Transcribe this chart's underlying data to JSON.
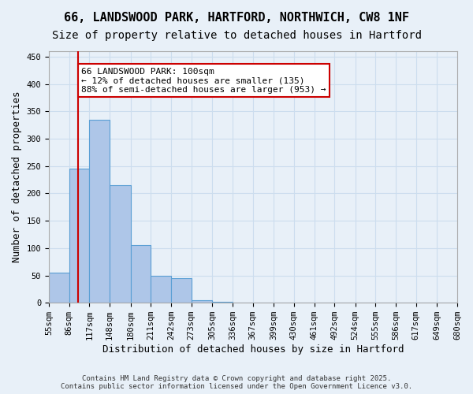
{
  "title1": "66, LANDSWOOD PARK, HARTFORD, NORTHWICH, CW8 1NF",
  "title2": "Size of property relative to detached houses in Hartford",
  "xlabel": "Distribution of detached houses by size in Hartford",
  "ylabel": "Number of detached properties",
  "bin_labels": [
    "55sqm",
    "86sqm",
    "117sqm",
    "148sqm",
    "180sqm",
    "211sqm",
    "242sqm",
    "273sqm",
    "305sqm",
    "336sqm",
    "367sqm",
    "399sqm",
    "430sqm",
    "461sqm",
    "492sqm",
    "524sqm",
    "555sqm",
    "586sqm",
    "617sqm",
    "649sqm",
    "680sqm"
  ],
  "bar_heights": [
    55,
    245,
    335,
    215,
    105,
    50,
    45,
    5,
    2,
    1,
    0,
    0,
    0,
    0,
    0,
    0,
    0,
    0,
    0,
    0
  ],
  "bar_color": "#aec6e8",
  "bar_edgecolor": "#5a9fd4",
  "ylim": [
    0,
    460
  ],
  "yticks": [
    0,
    50,
    100,
    150,
    200,
    250,
    300,
    350,
    400,
    450
  ],
  "property_size": 100,
  "bin_edges": [
    55,
    86,
    117,
    148,
    180,
    211,
    242,
    273,
    305,
    336,
    367,
    399,
    430,
    461,
    492,
    524,
    555,
    586,
    617,
    649,
    680
  ],
  "vline_color": "#cc0000",
  "annotation_text": "66 LANDSWOOD PARK: 100sqm\n← 12% of detached houses are smaller (135)\n88% of semi-detached houses are larger (953) →",
  "annotation_box_edgecolor": "#cc0000",
  "annotation_box_facecolor": "#ffffff",
  "grid_color": "#ccddee",
  "background_color": "#e8f0f8",
  "footer_text": "Contains HM Land Registry data © Crown copyright and database right 2025.\nContains public sector information licensed under the Open Government Licence v3.0.",
  "title_fontsize": 11,
  "subtitle_fontsize": 10,
  "tick_fontsize": 7.5,
  "annotation_fontsize": 8
}
